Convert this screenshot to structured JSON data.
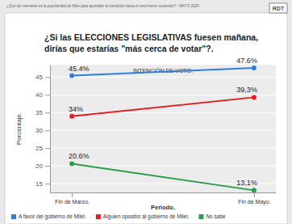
{
  "chart_data": {
    "type": "line",
    "header": "¿Qué tan relevante es la popularidad de Milei para apuntalar la transición hacia el crecimiento sostenido? - MAYO 2024.",
    "logo": "RDT",
    "title": "¿Si las ELECCIONES LEGISLATIVAS fuesen mañana, dirías que estarías \"más cerca de votar\"?.",
    "subtitle": "INTENCIÓN DE VOTO.",
    "x_label": "Periodo.",
    "y_label": "Porcentaje.",
    "categories": [
      "Fin de Marzo.",
      "Fin de Mayo."
    ],
    "series": [
      {
        "name": "A favor del gobierno de Milei.",
        "color": "#2f7fd6",
        "values": [
          45.4,
          47.6
        ],
        "value_labels": [
          "45.4%",
          "47.6%"
        ]
      },
      {
        "name": "Alguien opositor al gobierno de Milei.",
        "color": "#e0201f",
        "values": [
          34,
          39.3
        ],
        "value_labels": [
          "34%",
          "39,3%"
        ]
      },
      {
        "name": "No sabe",
        "color": "#2a9d4b",
        "values": [
          20.6,
          13.1
        ],
        "value_labels": [
          "20.6%",
          "13,1%"
        ]
      }
    ],
    "ylim": [
      12.5,
      48.5
    ],
    "yticks": [
      15,
      20,
      25,
      30,
      35,
      40,
      45
    ],
    "grid": true,
    "marker": "circle",
    "data_labels": true,
    "legend": "bottom"
  }
}
